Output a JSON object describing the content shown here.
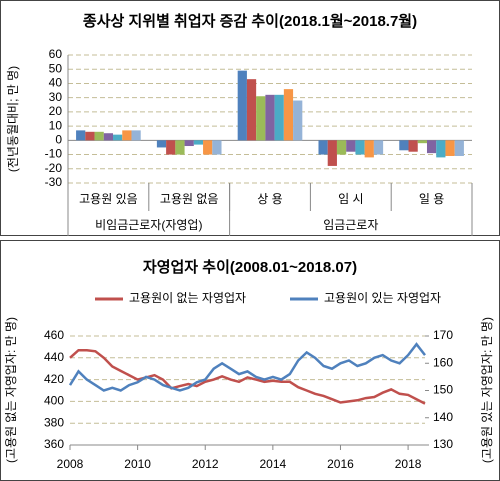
{
  "chart_data": [
    {
      "type": "bar",
      "title": "종사상 지위별 취업자 증감 추이(2018.1월~2018.7월)",
      "y_label": "(전년동월대비; 만 명)",
      "groups": [
        {
          "label": "비임금근로자(자영업)",
          "categories": [
            "고용원 있음",
            "고용원 없음"
          ]
        },
        {
          "label": "임금근로자",
          "categories": [
            "상 용",
            "임 시",
            "일 용"
          ]
        }
      ],
      "series": [
        {
          "color": "#4f81bd",
          "values": [
            7,
            -5,
            49,
            -10,
            -7
          ]
        },
        {
          "color": "#c0504d",
          "values": [
            6,
            -10,
            43,
            -18,
            -8
          ]
        },
        {
          "color": "#9bbb59",
          "values": [
            6,
            -10,
            31,
            -10,
            -2
          ]
        },
        {
          "color": "#8064a2",
          "values": [
            5,
            -4,
            32,
            -8,
            -9
          ]
        },
        {
          "color": "#4bacc6",
          "values": [
            4,
            -3,
            32,
            -10,
            -12
          ]
        },
        {
          "color": "#f79646",
          "values": [
            7,
            -10,
            36,
            -12,
            -11
          ]
        },
        {
          "color": "#95b3d7",
          "values": [
            7,
            -10,
            28,
            -10,
            -11
          ]
        }
      ],
      "ylim": [
        -30,
        60
      ],
      "yticks": [
        -30,
        -20,
        -10,
        0,
        10,
        20,
        30,
        40,
        50,
        60
      ],
      "grid": true
    },
    {
      "type": "line",
      "title": "자영업자 추이(2008.01~2018.07)",
      "y_label": "(고용원 없는 자영업자: 만 명)",
      "y2_label": "(고용원 있는 자영업자: 만 명)",
      "x": [
        2008,
        2008.25,
        2008.5,
        2008.75,
        2009,
        2009.25,
        2009.5,
        2009.75,
        2010,
        2010.25,
        2010.5,
        2010.75,
        2011,
        2011.25,
        2011.5,
        2011.75,
        2012,
        2012.25,
        2012.5,
        2012.75,
        2013,
        2013.25,
        2013.5,
        2013.75,
        2014,
        2014.25,
        2014.5,
        2014.75,
        2015,
        2015.25,
        2015.5,
        2015.75,
        2016,
        2016.25,
        2016.5,
        2016.75,
        2017,
        2017.25,
        2017.5,
        2017.75,
        2018,
        2018.25,
        2018.5
      ],
      "series": [
        {
          "name": "고용원이 없는 자영업자",
          "color": "#c0504d",
          "values": [
            440,
            447,
            447,
            446,
            440,
            432,
            428,
            424,
            420,
            422,
            424,
            420,
            412,
            414,
            416,
            414,
            418,
            420,
            423,
            420,
            418,
            422,
            420,
            418,
            419,
            418,
            418,
            413,
            410,
            407,
            405,
            402,
            399,
            400,
            401,
            403,
            404,
            408,
            411,
            407,
            406,
            402,
            398
          ]
        },
        {
          "name": "고용원이 있는 자영업자",
          "color": "#4f81bd",
          "axis": "y2",
          "values": [
            152,
            157,
            154,
            152,
            150,
            151,
            150,
            152,
            153,
            155,
            154,
            152,
            151,
            150,
            151,
            153,
            154,
            158,
            160,
            158,
            156,
            157,
            155,
            154,
            155,
            154,
            156,
            161,
            164,
            162,
            159,
            158,
            160,
            161,
            159,
            160,
            162,
            163,
            161,
            160,
            163,
            167,
            163
          ]
        }
      ],
      "xlim": [
        2008,
        2018.5
      ],
      "xticks": [
        2008,
        2010,
        2012,
        2014,
        2016,
        2018
      ],
      "ylim": [
        360,
        460
      ],
      "yticks": [
        360,
        380,
        400,
        420,
        440,
        460
      ],
      "y2lim": [
        130,
        170
      ],
      "y2ticks": [
        130,
        140,
        150,
        160,
        170
      ],
      "grid": true,
      "legend": "top"
    }
  ]
}
